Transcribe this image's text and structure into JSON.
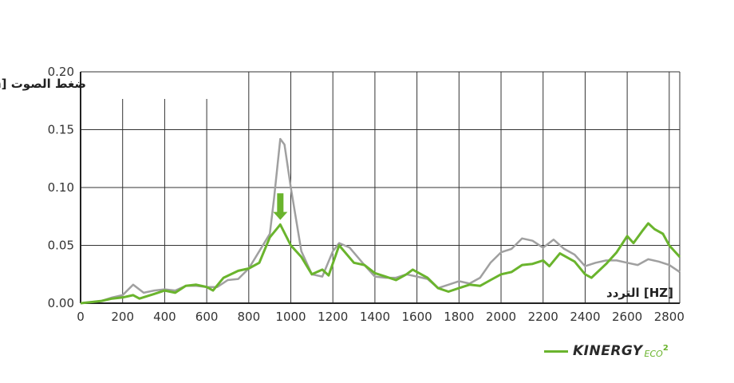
{
  "chart_data": {
    "type": "line",
    "title": "",
    "ylabel": "ضغط الصوت [Pa]",
    "xlabel": "التردد [HZ]",
    "xlim": [
      0,
      2850
    ],
    "ylim": [
      0,
      0.2
    ],
    "xticks": [
      "0",
      "200",
      "400",
      "600",
      "800",
      "1000",
      "1200",
      "1400",
      "1600",
      "1800",
      "2000",
      "2200",
      "2400",
      "2600",
      "2800"
    ],
    "yticks": [
      "0.00",
      "0.05",
      "0.10",
      "0.15",
      "0.20"
    ],
    "grid": true,
    "annotation": {
      "type": "down-arrow",
      "x": 950,
      "y_top": 0.095,
      "y_bottom": 0.072
    },
    "colors": {
      "green": "#6ab42d",
      "gray": "#a0a0a0"
    },
    "series": [
      {
        "color": "#a0a0a0",
        "points": [
          [
            0,
            0
          ],
          [
            50,
            0.001
          ],
          [
            100,
            0.002
          ],
          [
            150,
            0.005
          ],
          [
            200,
            0.007
          ],
          [
            250,
            0.016
          ],
          [
            300,
            0.009
          ],
          [
            350,
            0.011
          ],
          [
            400,
            0.012
          ],
          [
            450,
            0.011
          ],
          [
            500,
            0.015
          ],
          [
            550,
            0.015
          ],
          [
            600,
            0.014
          ],
          [
            650,
            0.014
          ],
          [
            700,
            0.02
          ],
          [
            750,
            0.021
          ],
          [
            800,
            0.03
          ],
          [
            850,
            0.045
          ],
          [
            900,
            0.06
          ],
          [
            920,
            0.09
          ],
          [
            950,
            0.142
          ],
          [
            970,
            0.137
          ],
          [
            1000,
            0.1
          ],
          [
            1050,
            0.045
          ],
          [
            1100,
            0.025
          ],
          [
            1150,
            0.023
          ],
          [
            1200,
            0.045
          ],
          [
            1230,
            0.052
          ],
          [
            1280,
            0.048
          ],
          [
            1350,
            0.033
          ],
          [
            1400,
            0.023
          ],
          [
            1450,
            0.022
          ],
          [
            1500,
            0.022
          ],
          [
            1550,
            0.025
          ],
          [
            1600,
            0.023
          ],
          [
            1650,
            0.021
          ],
          [
            1700,
            0.013
          ],
          [
            1750,
            0.016
          ],
          [
            1800,
            0.019
          ],
          [
            1850,
            0.017
          ],
          [
            1900,
            0.022
          ],
          [
            1950,
            0.035
          ],
          [
            2000,
            0.044
          ],
          [
            2050,
            0.047
          ],
          [
            2100,
            0.056
          ],
          [
            2150,
            0.054
          ],
          [
            2200,
            0.048
          ],
          [
            2250,
            0.055
          ],
          [
            2300,
            0.047
          ],
          [
            2350,
            0.042
          ],
          [
            2400,
            0.032
          ],
          [
            2450,
            0.035
          ],
          [
            2500,
            0.037
          ],
          [
            2550,
            0.037
          ],
          [
            2600,
            0.035
          ],
          [
            2650,
            0.033
          ],
          [
            2700,
            0.038
          ],
          [
            2750,
            0.036
          ],
          [
            2800,
            0.033
          ],
          [
            2850,
            0.027
          ]
        ]
      },
      {
        "color": "#6ab42d",
        "points": [
          [
            0,
            0
          ],
          [
            50,
            0.001
          ],
          [
            100,
            0.002
          ],
          [
            150,
            0.004
          ],
          [
            200,
            0.005
          ],
          [
            250,
            0.007
          ],
          [
            280,
            0.004
          ],
          [
            350,
            0.008
          ],
          [
            400,
            0.011
          ],
          [
            450,
            0.009
          ],
          [
            500,
            0.015
          ],
          [
            550,
            0.016
          ],
          [
            600,
            0.014
          ],
          [
            630,
            0.011
          ],
          [
            680,
            0.022
          ],
          [
            750,
            0.028
          ],
          [
            800,
            0.03
          ],
          [
            850,
            0.035
          ],
          [
            900,
            0.057
          ],
          [
            950,
            0.068
          ],
          [
            1000,
            0.05
          ],
          [
            1050,
            0.04
          ],
          [
            1100,
            0.025
          ],
          [
            1150,
            0.029
          ],
          [
            1180,
            0.024
          ],
          [
            1230,
            0.05
          ],
          [
            1300,
            0.035
          ],
          [
            1350,
            0.033
          ],
          [
            1400,
            0.026
          ],
          [
            1450,
            0.023
          ],
          [
            1500,
            0.02
          ],
          [
            1550,
            0.025
          ],
          [
            1580,
            0.029
          ],
          [
            1650,
            0.022
          ],
          [
            1700,
            0.013
          ],
          [
            1750,
            0.01
          ],
          [
            1800,
            0.013
          ],
          [
            1850,
            0.016
          ],
          [
            1900,
            0.015
          ],
          [
            1950,
            0.02
          ],
          [
            2000,
            0.025
          ],
          [
            2050,
            0.027
          ],
          [
            2100,
            0.033
          ],
          [
            2150,
            0.034
          ],
          [
            2200,
            0.037
          ],
          [
            2230,
            0.032
          ],
          [
            2280,
            0.043
          ],
          [
            2350,
            0.036
          ],
          [
            2400,
            0.025
          ],
          [
            2430,
            0.022
          ],
          [
            2500,
            0.034
          ],
          [
            2550,
            0.044
          ],
          [
            2600,
            0.058
          ],
          [
            2630,
            0.052
          ],
          [
            2670,
            0.062
          ],
          [
            2700,
            0.069
          ],
          [
            2730,
            0.064
          ],
          [
            2770,
            0.06
          ],
          [
            2800,
            0.05
          ],
          [
            2850,
            0.04
          ]
        ]
      }
    ]
  },
  "logo": {
    "brand": "KINERGY",
    "suffix": "ECO",
    "superscript": "2"
  }
}
